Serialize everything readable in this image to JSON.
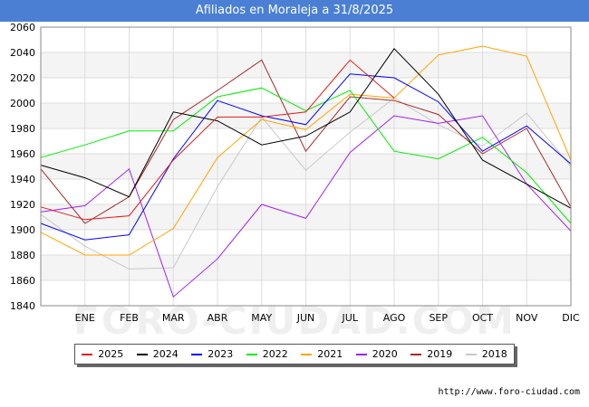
{
  "title": "Afiliados en Moraleja a 31/8/2025",
  "footer_url": "http://www.foro-ciudad.com",
  "watermark": "FORO-CIUDAD.COM",
  "chart_data": {
    "type": "line",
    "x": [
      "",
      "ENE",
      "FEB",
      "MAR",
      "ABR",
      "MAY",
      "JUN",
      "JUL",
      "AGO",
      "SEP",
      "OCT",
      "NOV",
      "DIC"
    ],
    "ylim": [
      1840,
      2060
    ],
    "yticks": [
      1840,
      1860,
      1880,
      1900,
      1920,
      1940,
      1960,
      1980,
      2000,
      2020,
      2040,
      2060
    ],
    "grid": true,
    "legend_position": "bottom",
    "series": [
      {
        "name": "2025",
        "color": "#e31a1c",
        "values": [
          1918,
          1908,
          1911,
          1955,
          1989,
          1989,
          1993,
          2034,
          2004,
          null,
          null,
          null,
          null
        ]
      },
      {
        "name": "2024",
        "color": "#000000",
        "values": [
          1951,
          1941,
          1926,
          1993,
          1986,
          1967,
          1974,
          1993,
          2043,
          2007,
          1955,
          1936,
          1917
        ]
      },
      {
        "name": "2023",
        "color": "#0000ff",
        "values": [
          1905,
          1892,
          1896,
          1956,
          2002,
          1990,
          1983,
          2023,
          2020,
          2001,
          1962,
          1982,
          1952
        ]
      },
      {
        "name": "2022",
        "color": "#00ee00",
        "values": [
          1957,
          1967,
          1978,
          1978,
          2005,
          2012,
          1994,
          2010,
          1962,
          1956,
          1973,
          1945,
          1905
        ]
      },
      {
        "name": "2021",
        "color": "#ffa500",
        "values": [
          1898,
          1880,
          1880,
          1901,
          1957,
          1987,
          1979,
          2007,
          2004,
          2038,
          2045,
          2037,
          1955
        ]
      },
      {
        "name": "2020",
        "color": "#a020f0",
        "values": [
          1914,
          1919,
          1948,
          1847,
          1877,
          1920,
          1909,
          1961,
          1990,
          1984,
          1990,
          1936,
          1899
        ]
      },
      {
        "name": "2019",
        "color": "#a52a2a",
        "values": [
          1948,
          1905,
          1926,
          1987,
          2010,
          2034,
          1962,
          2005,
          2002,
          1991,
          1960,
          1980,
          1918
        ]
      },
      {
        "name": "2018",
        "color": "#c8c8c8",
        "values": [
          1912,
          1887,
          1869,
          1870,
          1934,
          1989,
          1947,
          1977,
          2004,
          1983,
          1966,
          1992,
          1950
        ]
      }
    ]
  }
}
